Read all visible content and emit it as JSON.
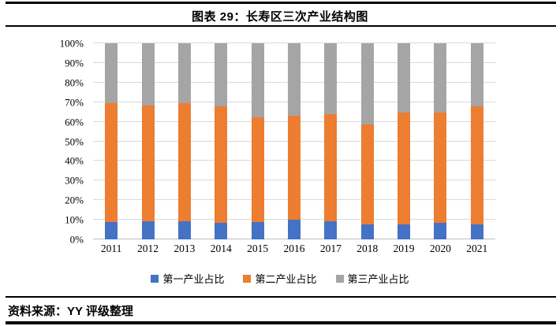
{
  "header": {
    "title": "图表 29：长寿区三次产业结构图"
  },
  "footer": {
    "source_label": "资料来源：YY 评级整理"
  },
  "style": {
    "background": "#FFFFFF",
    "rule_color": "#000000",
    "grid_color": "#D9D9D9",
    "axis_line_color": "#BFBFBF",
    "text_color": "#000000"
  },
  "chart_data": {
    "type": "bar",
    "stacked": true,
    "percent_stacked": true,
    "title": "图表 29：长寿区三次产业结构图",
    "xlabel": "",
    "ylabel": "",
    "categories": [
      "2011",
      "2012",
      "2013",
      "2014",
      "2015",
      "2016",
      "2017",
      "2018",
      "2019",
      "2020",
      "2021"
    ],
    "series": [
      {
        "name": "第一产业占比",
        "color": "#4472C4",
        "values": [
          8.7,
          9.2,
          9.1,
          8.5,
          8.9,
          9.9,
          9.2,
          7.8,
          7.7,
          8.5,
          7.8
        ]
      },
      {
        "name": "第二产业占比",
        "color": "#ED7D31",
        "values": [
          60.6,
          59.1,
          60.3,
          59.2,
          53.4,
          53.0,
          54.7,
          50.7,
          56.9,
          56.0,
          60.2
        ]
      },
      {
        "name": "第三产业占比",
        "color": "#A5A5A5",
        "values": [
          30.7,
          31.7,
          30.6,
          32.3,
          37.7,
          37.1,
          36.1,
          41.5,
          35.4,
          35.5,
          32.0
        ]
      }
    ],
    "ylim": [
      0,
      100
    ],
    "ytick_step": 10,
    "yticks": [
      "0%",
      "10%",
      "20%",
      "30%",
      "40%",
      "50%",
      "60%",
      "70%",
      "80%",
      "90%",
      "100%"
    ],
    "grid": true,
    "legend_position": "bottom"
  }
}
